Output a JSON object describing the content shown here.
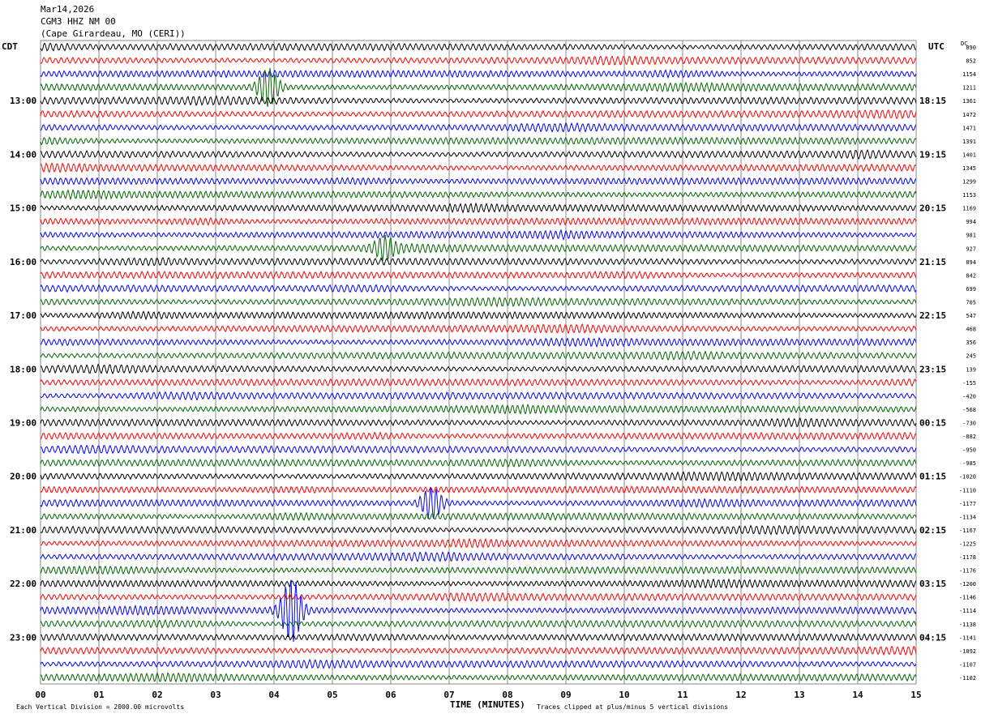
{
  "header": {
    "date": "Mar14,2026",
    "station": "CGM3 HHZ NM 00",
    "location": "(Cape Girardeau, MO (CERI))"
  },
  "left_zone": "CDT",
  "right_zone": "UTC",
  "dc_label": "DC",
  "footer": {
    "scale_note": "Each Vertical Division = 2000.00 microvolts",
    "xlabel": "TIME (MINUTES)",
    "clip_note": "Traces clipped at plus/minus 5 vertical divisions"
  },
  "colors": {
    "black": "#000000",
    "red": "#ff0000",
    "blue": "#0000ff",
    "green": "#006400",
    "grid": "#888888"
  },
  "chart_data": {
    "type": "helicorder",
    "minutes_per_line": 15,
    "xlabel": "TIME (MINUTES)",
    "x_ticks": [
      "00",
      "01",
      "02",
      "03",
      "04",
      "05",
      "06",
      "07",
      "08",
      "09",
      "10",
      "11",
      "12",
      "13",
      "14",
      "15"
    ],
    "xlim": [
      0,
      15
    ],
    "line_count": 48,
    "trace_color_cycle": [
      "black",
      "red",
      "blue",
      "green"
    ],
    "hour_labels_local": [
      {
        "line": 4,
        "label": "13:00"
      },
      {
        "line": 8,
        "label": "14:00"
      },
      {
        "line": 12,
        "label": "15:00"
      },
      {
        "line": 16,
        "label": "16:00"
      },
      {
        "line": 20,
        "label": "17:00"
      },
      {
        "line": 24,
        "label": "18:00"
      },
      {
        "line": 28,
        "label": "19:00"
      },
      {
        "line": 32,
        "label": "20:00"
      },
      {
        "line": 36,
        "label": "21:00"
      },
      {
        "line": 40,
        "label": "22:00"
      },
      {
        "line": 44,
        "label": "23:00"
      }
    ],
    "hour_labels_utc": [
      {
        "line": 4,
        "label": "18:15"
      },
      {
        "line": 8,
        "label": "19:15"
      },
      {
        "line": 12,
        "label": "20:15"
      },
      {
        "line": 16,
        "label": "21:15"
      },
      {
        "line": 20,
        "label": "22:15"
      },
      {
        "line": 24,
        "label": "23:15"
      },
      {
        "line": 28,
        "label": "00:15"
      },
      {
        "line": 32,
        "label": "01:15"
      },
      {
        "line": 36,
        "label": "02:15"
      },
      {
        "line": 40,
        "label": "03:15"
      },
      {
        "line": 44,
        "label": "04:15"
      }
    ],
    "dc_offsets": [
      "890",
      "852",
      "1154",
      "1211",
      "1361",
      "1472",
      "1471",
      "1391",
      "1401",
      "1345",
      "1299",
      "1153",
      "1169",
      "994",
      "981",
      "927",
      "894",
      "842",
      "699",
      "705",
      "547",
      "468",
      "356",
      "245",
      "139",
      "-155",
      "-420",
      "-568",
      "-730",
      "-882",
      "-950",
      "-985",
      "-1020",
      "-1110",
      "-1177",
      "-1134",
      "-1167",
      "-1225",
      "-1178",
      "-1176",
      "-1200",
      "-1146",
      "-1114",
      "-1138",
      "-1141",
      "-1092",
      "-1107",
      "-1102"
    ],
    "events": [
      {
        "line": 3,
        "minute": 3.9,
        "amplitude": 2.6
      },
      {
        "line": 15,
        "minute": 5.9,
        "amplitude": 1.4
      },
      {
        "line": 34,
        "minute": 6.7,
        "amplitude": 2.2
      },
      {
        "line": 42,
        "minute": 4.3,
        "amplitude": 4.5
      }
    ]
  }
}
